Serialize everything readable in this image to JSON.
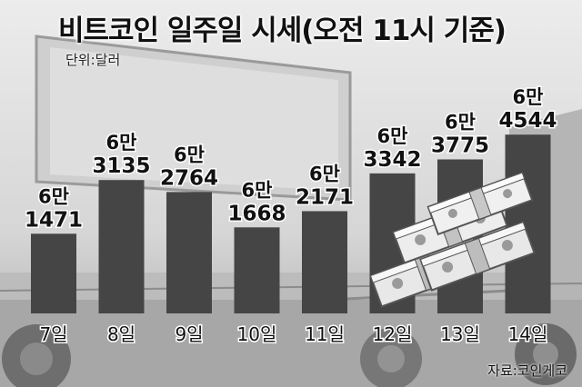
{
  "header": {
    "title": "비트코인 일주일 시세(오전 11시 기준)",
    "unit": "단위:달러"
  },
  "footer": {
    "source": "자료:코인게코"
  },
  "colors": {
    "bar": "#454545",
    "text": "#111111"
  },
  "chart_data": {
    "type": "bar",
    "title": "비트코인 일주일 시세(오전 11시 기준)",
    "unit_label": "단위:달러",
    "categories": [
      "7일",
      "8일",
      "9일",
      "10일",
      "11일",
      "12일",
      "13일",
      "14일"
    ],
    "values": [
      61471,
      63135,
      62764,
      61668,
      62171,
      63342,
      63775,
      64544
    ],
    "label_top": [
      "6만",
      "6만",
      "6만",
      "6만",
      "6만",
      "6만",
      "6만",
      "6만"
    ],
    "label_bottom": [
      "1471",
      "3135",
      "2764",
      "1668",
      "2171",
      "3342",
      "3775",
      "4544"
    ],
    "ylim": [
      60000,
      65000
    ],
    "grid": false,
    "legend": "none"
  }
}
